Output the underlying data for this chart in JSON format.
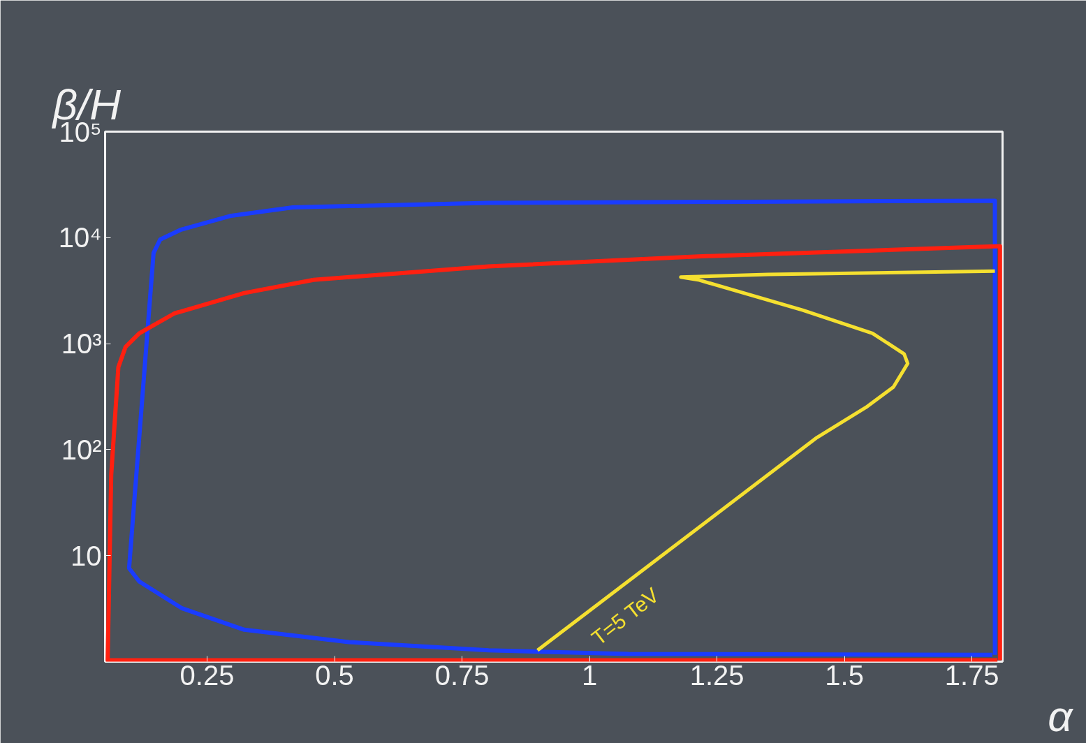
{
  "chart_data": {
    "type": "line",
    "xlabel": "α",
    "ylabel": "β/H",
    "log": "y",
    "grid": false,
    "marker": "none",
    "line_style": "solid",
    "xlim": [
      0.05,
      1.81
    ],
    "ylim": [
      1,
      100000
    ],
    "xticks": [
      0.25,
      0.5,
      0.75,
      1,
      1.25,
      1.5,
      1.75
    ],
    "yticks": [
      10,
      {
        "value": 100,
        "label": "10²"
      },
      {
        "value": 1000,
        "label": "10³"
      },
      {
        "value": 10000,
        "label": "10⁴"
      },
      {
        "value": 100000,
        "label": "10⁵"
      }
    ],
    "series": [
      {
        "color": "#1a3cff",
        "x": [
          1.795,
          1.795,
          0.802,
          0.418,
          0.295,
          0.199,
          0.158,
          0.145,
          0.097,
          0.117,
          0.2,
          0.323,
          0.528,
          0.802,
          1.076,
          1.79
        ],
        "values": [
          1.16,
          22300,
          21300,
          19300,
          16000,
          11900,
          9600,
          7150,
          7.6,
          5.7,
          3.2,
          2.0,
          1.53,
          1.28,
          1.18,
          1.16
        ]
      },
      {
        "color": "#ff2010",
        "x": [
          1.805,
          1.805,
          1.213,
          0.802,
          0.459,
          0.323,
          0.186,
          0.117,
          0.09,
          0.076,
          0.062,
          0.055,
          1.8
        ],
        "values": [
          1.03,
          8300,
          6650,
          5350,
          4000,
          3000,
          1930,
          1250,
          930,
          600,
          58,
          1.03,
          1.03
        ]
      },
      {
        "color": "#f5e030",
        "x": [
          0.898,
          1.446,
          1.542,
          1.596,
          1.624,
          1.617,
          1.555,
          1.418,
          1.213,
          1.179,
          1.35,
          1.795
        ],
        "values": [
          1.28,
          130,
          250,
          390,
          650,
          800,
          1250,
          2070,
          4000,
          4240,
          4490,
          4830
        ]
      }
    ],
    "annotations": [
      "T=5 TeV"
    ]
  }
}
